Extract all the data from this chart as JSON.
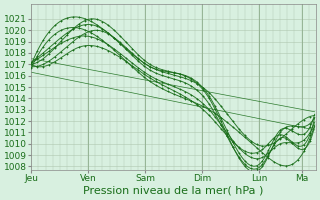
{
  "title": "",
  "xlabel": "Pression niveau de la mer( hPa )",
  "ylabel": "",
  "bg_color": "#d8f0e0",
  "plot_bg_color": "#d8f0e0",
  "grid_color": "#b0c8b0",
  "line_color": "#1a6e1a",
  "ylim": [
    1008,
    1022
  ],
  "yticks": [
    1008,
    1009,
    1010,
    1011,
    1012,
    1013,
    1014,
    1015,
    1016,
    1017,
    1018,
    1019,
    1020,
    1021
  ],
  "day_labels": [
    "Jeu",
    "Ven",
    "Sam",
    "Dim",
    "Lun",
    "Ma"
  ],
  "day_positions": [
    0,
    48,
    96,
    144,
    192,
    228
  ],
  "total_points": 240,
  "x_label_fontsize": 8,
  "tick_fontsize": 6.5,
  "line_defs": [
    {
      "kx": [
        0,
        10,
        50,
        100,
        150,
        195,
        210,
        228,
        240
      ],
      "ky": [
        1017.0,
        1017.5,
        1021.0,
        1017.0,
        1014.0,
        1008.0,
        1011.0,
        1011.5,
        1012.5
      ]
    },
    {
      "kx": [
        0,
        10,
        50,
        100,
        150,
        195,
        210,
        228,
        240
      ],
      "ky": [
        1017.2,
        1018.0,
        1020.5,
        1016.5,
        1013.5,
        1008.2,
        1010.5,
        1009.5,
        1012.0
      ]
    },
    {
      "kx": [
        0,
        10,
        55,
        100,
        150,
        195,
        210,
        228,
        240
      ],
      "ky": [
        1016.8,
        1017.0,
        1020.0,
        1016.8,
        1014.2,
        1008.5,
        1011.2,
        1010.8,
        1013.0
      ]
    },
    {
      "kx": [
        0,
        10,
        45,
        100,
        150,
        195,
        210,
        228,
        240
      ],
      "ky": [
        1017.1,
        1017.8,
        1019.5,
        1016.0,
        1013.0,
        1008.8,
        1010.0,
        1010.2,
        1012.2
      ]
    },
    {
      "kx": [
        0,
        5,
        40,
        100,
        150,
        195,
        210,
        228,
        240
      ],
      "ky": [
        1017.0,
        1016.8,
        1018.5,
        1015.8,
        1012.5,
        1009.5,
        1010.8,
        1009.8,
        1012.8
      ]
    },
    {
      "kx": [
        0,
        50,
        100,
        150,
        195,
        228,
        240
      ],
      "ky": [
        1017.0,
        1020.8,
        1016.8,
        1014.5,
        1009.8,
        1012.0,
        1012.5
      ]
    },
    {
      "kx": [
        0,
        50,
        100,
        150,
        195,
        228,
        240
      ],
      "ky": [
        1016.7,
        1019.8,
        1015.5,
        1013.0,
        1009.2,
        1009.0,
        1012.0
      ]
    },
    {
      "kx": [
        0,
        240
      ],
      "ky": [
        1017.5,
        1012.8
      ]
    },
    {
      "kx": [
        0,
        240
      ],
      "ky": [
        1016.3,
        1011.2
      ]
    }
  ]
}
